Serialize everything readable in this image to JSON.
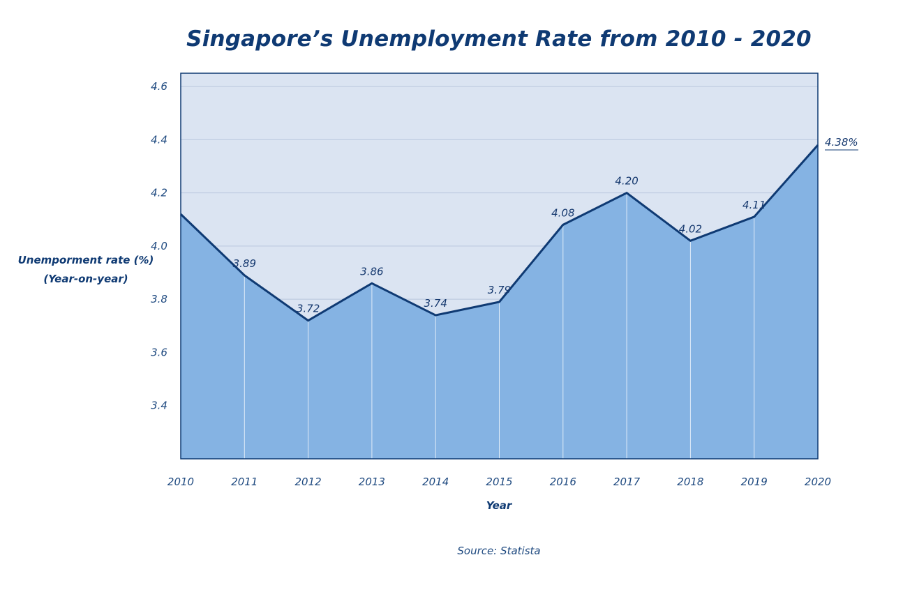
{
  "chart_data": {
    "type": "area",
    "title": "Singapore’s Unemployment Rate from 2010 - 2020",
    "xlabel": "Year",
    "ylabel_lines": [
      "Unemporment rate (%)",
      "(Year-on-year)"
    ],
    "source": "Source: Statista",
    "x": [
      "2010",
      "2011",
      "2012",
      "2013",
      "2014",
      "2015",
      "2016",
      "2017",
      "2018",
      "2019",
      "2020"
    ],
    "values": [
      4.12,
      3.89,
      3.72,
      3.86,
      3.74,
      3.79,
      4.08,
      4.2,
      4.02,
      4.11,
      4.38
    ],
    "data_labels": [
      "",
      "3.89",
      "3.72",
      "3.86",
      "3.74",
      "3.79",
      "4.08",
      "4.20",
      "4.02",
      "4.11",
      "4.38%"
    ],
    "yticks": [
      "3.4",
      "3.6",
      "3.8",
      "4.0",
      "4.2",
      "4.4",
      "4.6"
    ],
    "ylim": [
      3.2,
      4.65
    ],
    "grid": true,
    "colors": {
      "fill": "#85b3e3",
      "background": "#dbe4f2",
      "line": "#0f3a73",
      "gridline": "#b9c6dd",
      "text": "#15386e"
    }
  }
}
